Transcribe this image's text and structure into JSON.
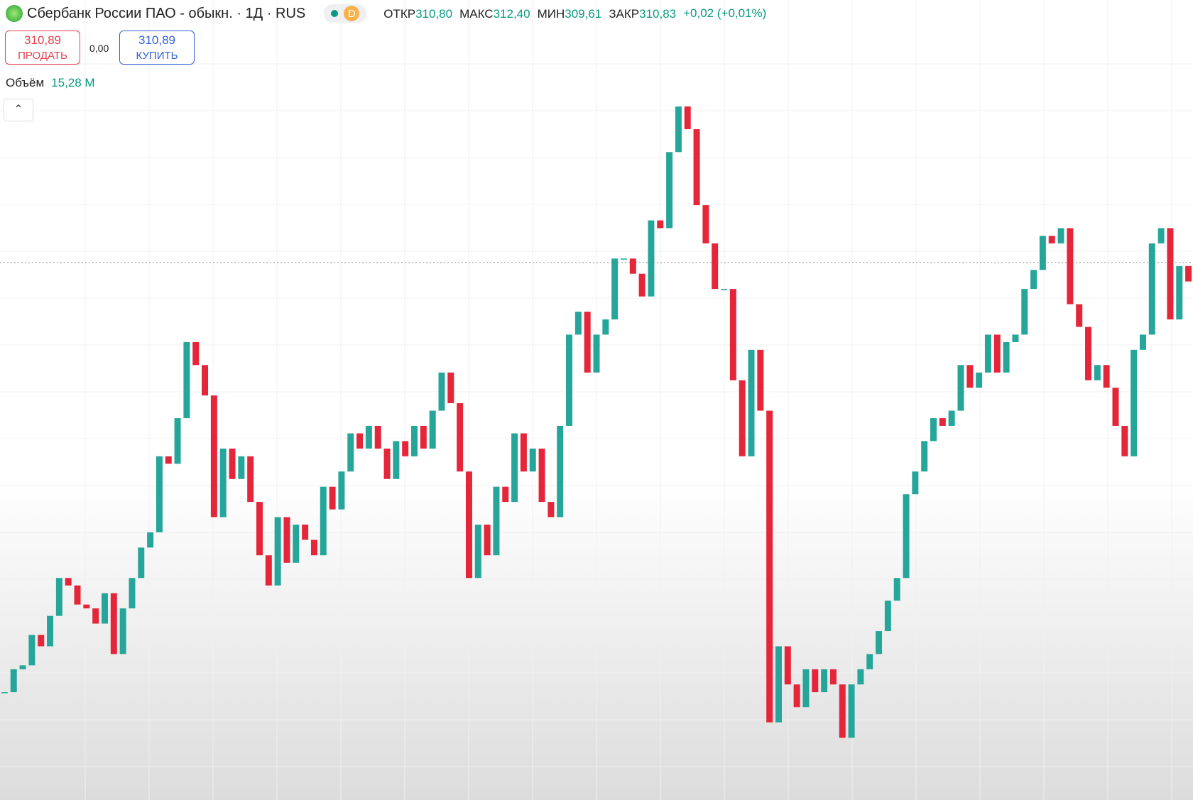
{
  "header": {
    "title": "Сбербанк России ПАО - обыкн. · 1Д · RUS",
    "badge": "D",
    "ohlc": [
      {
        "label": "ОТКР",
        "value": "310,80"
      },
      {
        "label": "МАКС",
        "value": "312,40"
      },
      {
        "label": "МИН",
        "value": "309,61"
      },
      {
        "label": "ЗАКР",
        "value": "310,83"
      }
    ],
    "change": "+0,02 (+0,01%)"
  },
  "trade": {
    "sell_price": "310,89",
    "sell_label": "ПРОДАТЬ",
    "spread": "0,00",
    "buy_price": "310,89",
    "buy_label": "КУПИТЬ"
  },
  "volume": {
    "label": "Объём",
    "value": "15,28 M"
  },
  "chart_data": {
    "type": "candlestick",
    "ylim": [
      74.1,
      426.5
    ],
    "price_line": 310.89,
    "up_color": "#26a69a",
    "down_color": "#e5263a",
    "values": [
      121.6,
      131.7,
      133.4,
      146.8,
      141.8,
      155.2,
      171.9,
      168.6,
      160.2,
      158.5,
      151.8,
      165.2,
      138.4,
      158.5,
      171.9,
      185.3,
      192,
      225.5,
      222.2,
      242.3,
      275.8,
      265.7,
      252.3,
      198.7,
      228.9,
      215.5,
      225.5,
      205.4,
      181.9,
      168.6,
      198.7,
      178.6,
      195.4,
      188.7,
      181.9,
      212.1,
      202.1,
      218.8,
      235.6,
      228.9,
      238.9,
      228.9,
      215.5,
      232.2,
      225.5,
      238.9,
      228.9,
      245.6,
      262.4,
      248.9,
      218.8,
      171.9,
      195.4,
      181.9,
      212.1,
      205.4,
      235.6,
      218.8,
      228.9,
      205.4,
      198.7,
      238.9,
      279.1,
      289.2,
      262.4,
      279.1,
      285.8,
      312.6,
      312.6,
      305.9,
      295.9,
      329.4,
      326,
      359.5,
      379.6,
      369.6,
      336.1,
      319.3,
      299.2,
      299.2,
      259,
      225.5,
      272.4,
      245.6,
      108.3,
      141.8,
      125,
      115,
      131.7,
      121.6,
      131.7,
      125,
      101.5,
      125,
      131.7,
      138.4,
      148.5,
      161.9,
      171.9,
      208.8,
      218.8,
      232.2,
      242.3,
      238.9,
      245.6,
      265.7,
      255.7,
      262.4,
      279.1,
      262.4,
      275.8,
      279.1,
      299.2,
      307.6,
      322.6,
      319.3,
      326,
      292.5,
      282.5,
      259,
      265.7,
      255.7,
      238.9,
      225.5,
      272.4,
      279.1,
      319.3,
      326,
      285.8,
      309.3,
      302.5
    ]
  }
}
